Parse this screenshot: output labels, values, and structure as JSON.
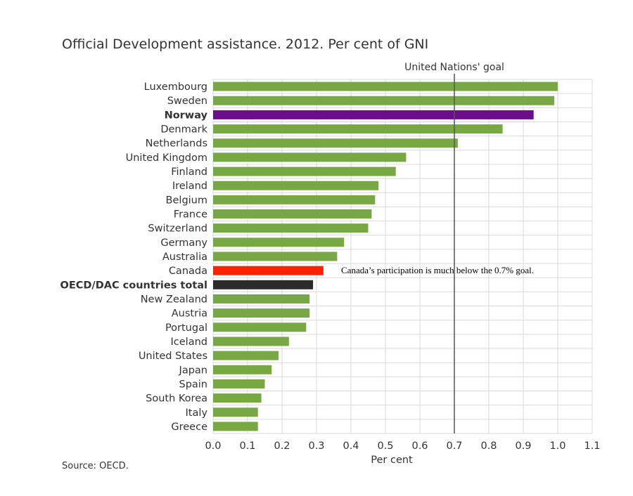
{
  "chart_data": {
    "type": "bar",
    "orientation": "horizontal",
    "title": "Official Development assistance. 2012. Per cent of GNI",
    "xlabel": "Per cent",
    "source": "Source: OECD.",
    "xlim": [
      0,
      1.1
    ],
    "xticks": [
      "0.0",
      "0.1",
      "0.2",
      "0.3",
      "0.4",
      "0.5",
      "0.6",
      "0.7",
      "0.8",
      "0.9",
      "1.0",
      "1.1"
    ],
    "grid": true,
    "reference_line": {
      "value": 0.7,
      "label": "United Nations' goal"
    },
    "annotation": "Canada’s participation is much below the 0.7% goal.",
    "colors": {
      "default": "#77a843",
      "Norway": "#6a0e8e",
      "Canada": "#ff2200",
      "OECD/DAC countries total": "#2b2b2b"
    },
    "bold_categories": [
      "Norway",
      "OECD/DAC countries total"
    ],
    "categories": [
      "Luxembourg",
      "Sweden",
      "Norway",
      "Denmark",
      "Netherlands",
      "United Kingdom",
      "Finland",
      "Ireland",
      "Belgium",
      "France",
      "Switzerland",
      "Germany",
      "Australia",
      "Canada",
      "OECD/DAC countries total",
      "New Zealand",
      "Austria",
      "Portugal",
      "Iceland",
      "United States",
      "Japan",
      "Spain",
      "South Korea",
      "Italy",
      "Greece"
    ],
    "values": [
      1.0,
      0.99,
      0.93,
      0.84,
      0.71,
      0.56,
      0.53,
      0.48,
      0.47,
      0.46,
      0.45,
      0.38,
      0.36,
      0.32,
      0.29,
      0.28,
      0.28,
      0.27,
      0.22,
      0.19,
      0.17,
      0.15,
      0.14,
      0.13,
      0.13
    ]
  }
}
